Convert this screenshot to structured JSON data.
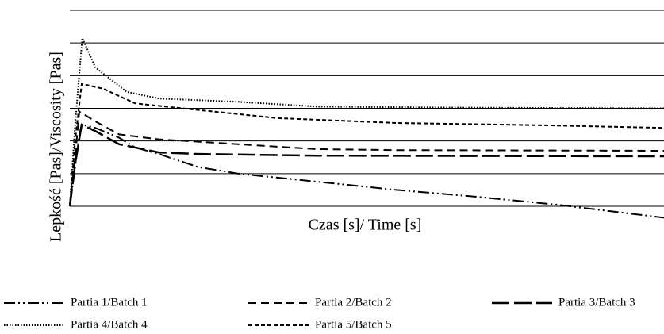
{
  "chart_data": {
    "type": "line",
    "xlabel": "Czas [s]/ Time [s]",
    "ylabel": "Lepkość [Pas]/Viscosity [Pas]",
    "xlim": [
      0,
      100
    ],
    "ylim": [
      -0.5,
      6
    ],
    "gridlines": [
      0,
      1,
      2,
      3,
      4,
      5,
      6
    ],
    "grid": true,
    "series": [
      {
        "name": "Partia 1/Batch 1",
        "color": "#000000",
        "dash": "14 4 2 4 2 4",
        "x": [
          0,
          0.9,
          1.6,
          2,
          4.3,
          8.3,
          11,
          15,
          21.6,
          28.3,
          41.7,
          55,
          68,
          82,
          100
        ],
        "values": [
          0,
          1.2,
          2.2,
          2.5,
          2.4,
          2.1,
          1.8,
          1.6,
          1.2,
          1.0,
          0.75,
          0.5,
          0.3,
          0.05,
          -0.35
        ]
      },
      {
        "name": "Partia 2/Batch 2",
        "color": "#000000",
        "dash": "10 6",
        "x": [
          0,
          0.9,
          1.6,
          4.3,
          8.3,
          15,
          28.3,
          41.7,
          55,
          100
        ],
        "values": [
          0,
          1.5,
          2.9,
          2.6,
          2.2,
          2.05,
          1.9,
          1.75,
          1.72,
          1.7
        ]
      },
      {
        "name": "Partia 3/Batch 3",
        "color": "#000000",
        "dash": "22 6",
        "x": [
          0,
          0.9,
          2,
          4.3,
          8.3,
          15,
          21.6,
          41.7,
          68,
          100
        ],
        "values": [
          0,
          1.3,
          2.5,
          2.3,
          1.9,
          1.65,
          1.6,
          1.55,
          1.54,
          1.53
        ]
      },
      {
        "name": "Partia 4/Batch 4",
        "color": "#000000",
        "dash": "1.5 2",
        "x": [
          0,
          0.9,
          2.1,
          4.3,
          9.6,
          15,
          28.3,
          41.7,
          68,
          100
        ],
        "values": [
          0,
          2.5,
          5.15,
          4.25,
          3.5,
          3.3,
          3.2,
          3.05,
          3.02,
          3.0
        ]
      },
      {
        "name": "Partia 5/Batch 5",
        "color": "#000000",
        "dash": "5 3",
        "x": [
          0,
          0.9,
          2,
          5.6,
          11,
          21.6,
          35,
          55,
          80,
          100
        ],
        "values": [
          0,
          2.0,
          3.75,
          3.6,
          3.15,
          2.95,
          2.7,
          2.55,
          2.48,
          2.4
        ]
      }
    ]
  }
}
